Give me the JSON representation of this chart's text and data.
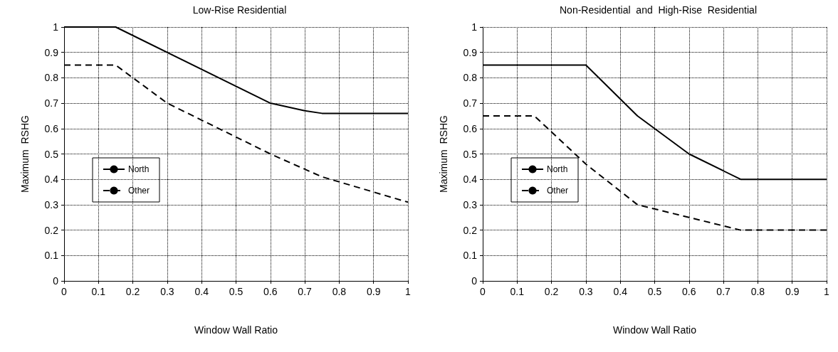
{
  "chart_data": [
    {
      "type": "line",
      "title": "Low-Rise Residential",
      "xlabel": "Window Wall Ratio",
      "ylabel": "Maximum  RSHG",
      "xlim": [
        0,
        1
      ],
      "xticks": [
        0,
        0.1,
        0.2,
        0.3,
        0.4,
        0.5,
        0.6,
        0.7,
        0.8,
        0.9,
        1
      ],
      "ylim": [
        0,
        1
      ],
      "yticks": [
        0,
        0.1,
        0.2,
        0.3,
        0.4,
        0.5,
        0.6,
        0.7,
        0.8,
        0.9,
        1
      ],
      "grid": true,
      "legend": "left",
      "marker": "none",
      "series": [
        {
          "name": "North",
          "color": "#000000",
          "line_style": "solid",
          "x": [
            0,
            0.15,
            0.6,
            0.7,
            0.75,
            1
          ],
          "values": [
            1,
            1,
            0.7,
            0.67,
            0.66,
            0.66
          ]
        },
        {
          "name": "Other",
          "color": "#000000",
          "line_style": "dashed",
          "x": [
            0,
            0.15,
            0.3,
            0.6,
            0.75,
            1
          ],
          "values": [
            0.85,
            0.85,
            0.7,
            0.5,
            0.41,
            0.31
          ]
        }
      ]
    },
    {
      "type": "line",
      "title": "Non-Residential  and  High-Rise  Residential",
      "xlabel": "Window Wall Ratio",
      "ylabel": "Maximum  RSHG",
      "xlim": [
        0,
        1
      ],
      "xticks": [
        0,
        0.1,
        0.2,
        0.3,
        0.4,
        0.5,
        0.6,
        0.7,
        0.8,
        0.9,
        1
      ],
      "ylim": [
        0,
        1
      ],
      "yticks": [
        0,
        0.1,
        0.2,
        0.3,
        0.4,
        0.5,
        0.6,
        0.7,
        0.8,
        0.9,
        1
      ],
      "grid": true,
      "legend": "left",
      "marker": "none",
      "series": [
        {
          "name": "North",
          "color": "#000000",
          "line_style": "solid",
          "x": [
            0,
            0.3,
            0.45,
            0.6,
            0.75,
            1
          ],
          "values": [
            0.85,
            0.85,
            0.65,
            0.5,
            0.4,
            0.4
          ]
        },
        {
          "name": "Other",
          "color": "#000000",
          "line_style": "dashed",
          "x": [
            0,
            0.15,
            0.3,
            0.45,
            0.6,
            0.75,
            1
          ],
          "values": [
            0.65,
            0.65,
            0.46,
            0.3,
            0.25,
            0.2,
            0.2
          ]
        }
      ]
    }
  ]
}
